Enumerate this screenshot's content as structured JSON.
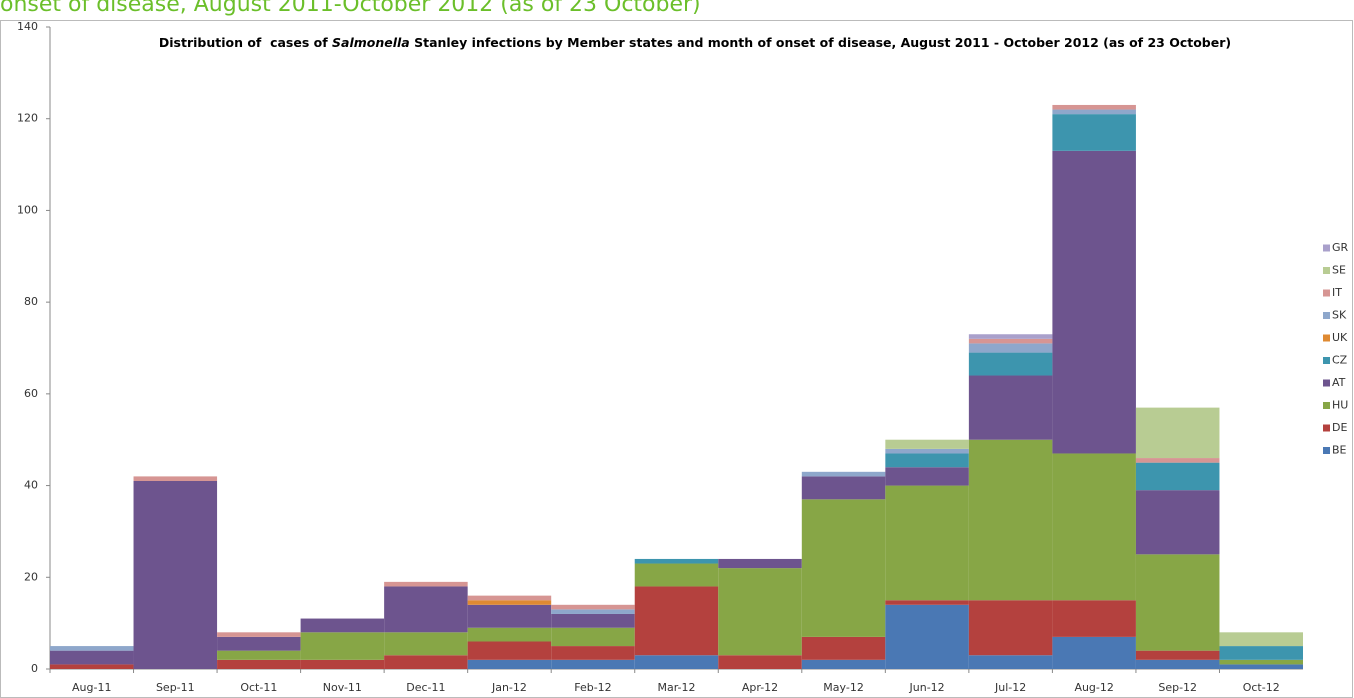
{
  "page_header": "onset of disease, August 2011-October 2012 (as of 23 October)",
  "chart_data": {
    "type": "stacked_bar",
    "title": [
      "Distribution of  cases of ",
      "Salmonella",
      " Stanley infections by Member states and month of onset of disease, August 2011 - October 2012 (as of 23 October)"
    ],
    "categories": [
      "Aug-11",
      "Sep-11",
      "Oct-11",
      "Nov-11",
      "Dec-11",
      "Jan-12",
      "Feb-12",
      "Mar-12",
      "Apr-12",
      "May-12",
      "Jun-12",
      "Jul-12",
      "Aug-12",
      "Sep-12",
      "Oct-12"
    ],
    "series": [
      {
        "name": "BE",
        "color": "#4a78b4",
        "values": [
          0,
          0,
          0,
          0,
          0,
          2,
          2,
          3,
          0,
          2,
          14,
          3,
          7,
          2,
          1
        ]
      },
      {
        "name": "DE",
        "color": "#b4413e",
        "values": [
          1,
          0,
          2,
          2,
          3,
          4,
          3,
          15,
          3,
          5,
          1,
          12,
          8,
          2,
          0
        ]
      },
      {
        "name": "HU",
        "color": "#87a646",
        "values": [
          0,
          0,
          2,
          6,
          5,
          3,
          4,
          5,
          19,
          30,
          25,
          35,
          32,
          21,
          1
        ]
      },
      {
        "name": "AT",
        "color": "#6d548e",
        "values": [
          3,
          41,
          3,
          3,
          10,
          5,
          3,
          0,
          2,
          5,
          4,
          14,
          66,
          14,
          0
        ]
      },
      {
        "name": "CZ",
        "color": "#3d95ae",
        "values": [
          0,
          0,
          0,
          0,
          0,
          0,
          0,
          1,
          0,
          0,
          3,
          5,
          8,
          6,
          3
        ]
      },
      {
        "name": "UK",
        "color": "#df8a32",
        "values": [
          0,
          0,
          0,
          0,
          0,
          1,
          0,
          0,
          0,
          0,
          0,
          0,
          0,
          0,
          0
        ]
      },
      {
        "name": "SK",
        "color": "#8ea7cb",
        "values": [
          1,
          0,
          0,
          0,
          0,
          0,
          1,
          0,
          0,
          1,
          1,
          2,
          1,
          0,
          0
        ]
      },
      {
        "name": "IT",
        "color": "#d69593",
        "values": [
          0,
          1,
          1,
          0,
          1,
          1,
          1,
          0,
          0,
          0,
          0,
          1,
          1,
          1,
          0
        ]
      },
      {
        "name": "SE",
        "color": "#b8cc93",
        "values": [
          0,
          0,
          0,
          0,
          0,
          0,
          0,
          0,
          0,
          0,
          2,
          0,
          0,
          11,
          3
        ]
      },
      {
        "name": "GR",
        "color": "#a9a0cb",
        "values": [
          0,
          0,
          0,
          0,
          0,
          0,
          0,
          0,
          0,
          0,
          0,
          1,
          0,
          0,
          0
        ]
      }
    ],
    "ylim": [
      0,
      140
    ],
    "yticks": [
      0,
      20,
      40,
      60,
      80,
      100,
      120,
      140
    ],
    "legend": "right"
  }
}
